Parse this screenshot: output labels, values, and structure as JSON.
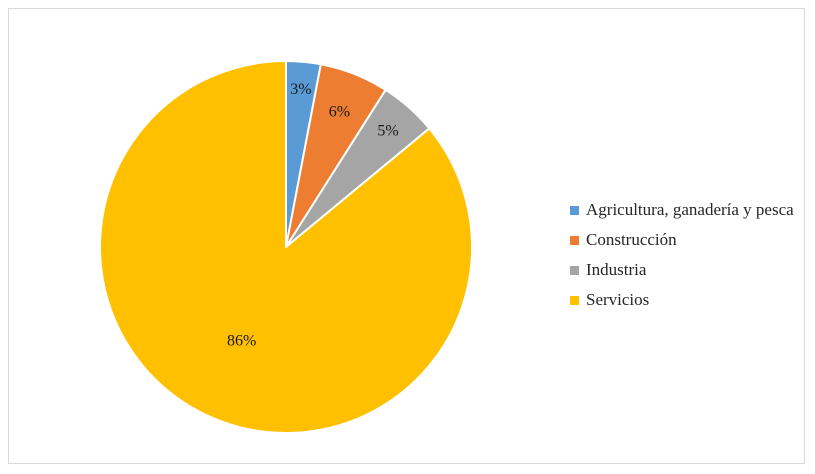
{
  "chart_data": {
    "type": "pie",
    "title": "",
    "categories": [
      "Agricultura, ganadería y pesca",
      "Construcción",
      "Industria",
      "Servicios"
    ],
    "values": [
      3,
      6,
      5,
      86
    ],
    "labels": [
      "3%",
      "6%",
      "5%",
      "86%"
    ],
    "colors": [
      "#5b9bd5",
      "#ed7d31",
      "#a5a5a5",
      "#ffc000"
    ],
    "start_angle": "12 o'clock",
    "direction": "clockwise",
    "legend_position": "right",
    "data_labels": "inside"
  }
}
